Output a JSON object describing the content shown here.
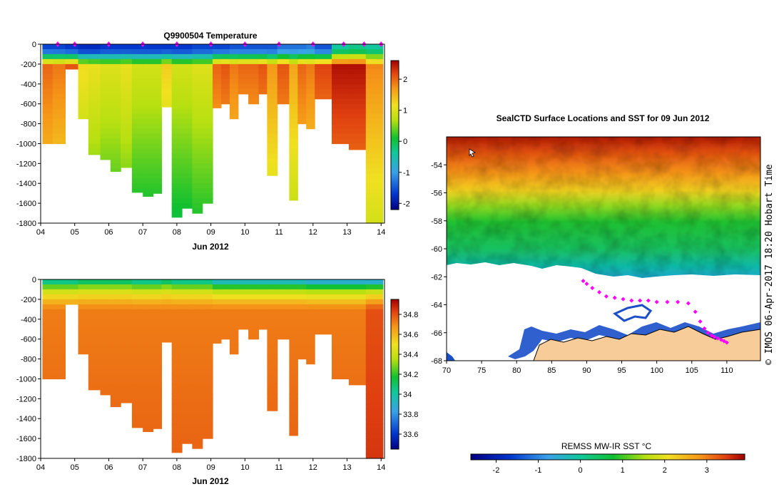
{
  "figure": {
    "credit": "© IMOS 06-Apr-2017 18:20 Hobart Time"
  },
  "colors": {
    "land": "#f8cc99",
    "track": "#ff00ff",
    "ice_edge": "#ffffff",
    "axis": "#000000"
  },
  "chart_data": [
    {
      "id": "temperature-section",
      "type": "heatmap",
      "title": "Q9900504  Temperature",
      "xlabel": "Jun 2012",
      "ylabel": "",
      "x_ticks": [
        "04",
        "05",
        "06",
        "07",
        "08",
        "09",
        "10",
        "11",
        "12",
        "13",
        "14"
      ],
      "x_tick_values": [
        4,
        5,
        6,
        7,
        8,
        9,
        10,
        11,
        12,
        13,
        14
      ],
      "xlim": [
        4,
        14.1
      ],
      "y_ticks": [
        "0",
        "-200",
        "-400",
        "-600",
        "-800",
        "-1000",
        "-1200",
        "-1400",
        "-1600",
        "-1800"
      ],
      "y_tick_values": [
        0,
        -200,
        -400,
        -600,
        -800,
        -1000,
        -1200,
        -1400,
        -1600,
        -1800
      ],
      "ylim": [
        -1800,
        0
      ],
      "colorbar": {
        "ticks": [
          "2",
          "1",
          "0",
          "-1",
          "-2"
        ],
        "tick_values": [
          2,
          1,
          0,
          -1,
          -2
        ],
        "range": [
          -2.2,
          2.6
        ]
      },
      "surfacing_markers_day": [
        4.5,
        5.0,
        6.0,
        7.0,
        8.0,
        9.0,
        10.0,
        11.0,
        12.0,
        12.9,
        13.5,
        14.0
      ],
      "profiles": {
        "start_day": [
          4.05,
          4.35,
          4.72,
          5.1,
          5.4,
          5.75,
          6.05,
          6.35,
          6.68,
          7.0,
          7.3,
          7.55,
          7.85,
          8.15,
          8.45,
          8.75,
          9.05,
          9.3,
          9.55,
          9.8,
          10.1,
          10.4,
          10.65,
          10.95,
          11.3,
          11.55,
          11.8,
          12.05,
          12.55,
          13.05,
          13.55
        ],
        "end_day": [
          4.35,
          4.72,
          5.1,
          5.4,
          5.75,
          6.05,
          6.35,
          6.68,
          7.0,
          7.3,
          7.55,
          7.85,
          8.15,
          8.45,
          8.75,
          9.05,
          9.3,
          9.55,
          9.8,
          10.1,
          10.4,
          10.65,
          10.95,
          11.3,
          11.55,
          11.8,
          12.05,
          12.55,
          13.05,
          13.55,
          14.05
        ],
        "max_depth_m": [
          1000,
          1000,
          250,
          750,
          1110,
          1160,
          1280,
          1240,
          1490,
          1530,
          1500,
          630,
          1740,
          1650,
          1700,
          1600,
          640,
          600,
          750,
          500,
          600,
          500,
          1320,
          600,
          1570,
          800,
          850,
          550,
          1000,
          1060,
          1820
        ],
        "surface_temp_c": [
          -1.6,
          -1.6,
          -1.7,
          -1.8,
          -1.8,
          -1.7,
          -1.7,
          -1.7,
          -1.7,
          -1.7,
          -1.7,
          -1.7,
          -1.7,
          -1.7,
          -1.6,
          -1.6,
          -1.6,
          -1.6,
          -1.5,
          -1.5,
          -1.5,
          -1.5,
          -1.5,
          -1.3,
          -1.3,
          -1.3,
          -1.2,
          -1.5,
          -0.4,
          -0.3,
          -0.4
        ],
        "deep_temp_c": [
          1.4,
          1.3,
          1.5,
          0.6,
          0.5,
          0.4,
          0.4,
          0.5,
          0.3,
          0.3,
          0.3,
          0.7,
          0.3,
          0.3,
          0.4,
          0.4,
          1.4,
          1.5,
          1.3,
          1.4,
          1.4,
          1.5,
          1.1,
          1.5,
          1.0,
          1.4,
          1.3,
          1.6,
          1.9,
          1.9,
          1.2
        ]
      }
    },
    {
      "id": "salinity-section",
      "type": "heatmap",
      "title": "",
      "xlabel": "Jun 2012",
      "ylabel": "",
      "x_ticks": [
        "04",
        "05",
        "06",
        "07",
        "08",
        "09",
        "10",
        "11",
        "12",
        "13",
        "14"
      ],
      "x_tick_values": [
        4,
        5,
        6,
        7,
        8,
        9,
        10,
        11,
        12,
        13,
        14
      ],
      "xlim": [
        4,
        14.1
      ],
      "y_ticks": [
        "0",
        "-200",
        "-400",
        "-600",
        "-800",
        "-1000",
        "-1200",
        "-1400",
        "-1600",
        "-1800"
      ],
      "y_tick_values": [
        0,
        -200,
        -400,
        -600,
        -800,
        -1000,
        -1200,
        -1400,
        -1600,
        -1800
      ],
      "ylim": [
        -1800,
        0
      ],
      "colorbar": {
        "ticks": [
          "34.8",
          "34.6",
          "34.4",
          "34.2",
          "34",
          "33.8",
          "33.6"
        ],
        "tick_values": [
          34.8,
          34.6,
          34.4,
          34.2,
          34.0,
          33.8,
          33.6
        ],
        "range": [
          33.45,
          34.95
        ]
      },
      "profiles": {
        "surface_salinity": [
          34.05,
          34.05,
          34.05,
          34.1,
          34.1,
          34.1,
          34.1,
          34.1,
          34.05,
          34.05,
          34.05,
          34.1,
          34.05,
          34.05,
          34.05,
          34.05,
          33.95,
          33.95,
          33.95,
          33.95,
          33.95,
          33.95,
          33.95,
          33.95,
          33.95,
          33.95,
          33.9,
          33.9,
          33.9,
          33.9,
          33.9
        ],
        "deep_salinity": [
          34.72,
          34.72,
          34.72,
          34.72,
          34.72,
          34.72,
          34.72,
          34.72,
          34.72,
          34.72,
          34.72,
          34.72,
          34.72,
          34.72,
          34.72,
          34.72,
          34.72,
          34.72,
          34.72,
          34.72,
          34.72,
          34.72,
          34.72,
          34.72,
          34.72,
          34.72,
          34.72,
          34.72,
          34.72,
          34.72,
          34.8
        ]
      }
    },
    {
      "id": "sst-map",
      "type": "heatmap",
      "title": "SealCTD Surface Locations and SST for 09 Jun 2012",
      "xlabel": "",
      "ylabel": "",
      "x_ticks": [
        "70",
        "75",
        "80",
        "85",
        "90",
        "95",
        "100",
        "105",
        "110"
      ],
      "x_tick_values": [
        70,
        75,
        80,
        85,
        90,
        95,
        100,
        105,
        110
      ],
      "xlim": [
        70,
        114.8
      ],
      "y_ticks": [
        "-54",
        "-56",
        "-58",
        "-60",
        "-62",
        "-64",
        "-66",
        "-68"
      ],
      "y_tick_values": [
        -54,
        -56,
        -58,
        -60,
        -62,
        -64,
        -66,
        -68
      ],
      "ylim": [
        -68,
        -52
      ],
      "colorbar": {
        "label": "REMSS MW-IR SST °C",
        "ticks": [
          "-2",
          "-1",
          "0",
          "1",
          "2",
          "3"
        ],
        "tick_values": [
          -2,
          -1,
          0,
          1,
          2,
          3
        ],
        "range": [
          -2.6,
          3.9
        ]
      },
      "sst_by_lat": {
        "lat": [
          -52.5,
          -54,
          -56,
          -58,
          -60,
          -61.5
        ],
        "sst_c": [
          3.3,
          2.3,
          1.1,
          0.1,
          -0.9,
          -1.4
        ]
      },
      "ice_edge_lat": -61.4,
      "track": {
        "lon": [
          89.5,
          90.0,
          90.8,
          91.8,
          92.8,
          94.0,
          95.2,
          96.4,
          97.6,
          98.8,
          100.0,
          101.5,
          103.0,
          104.5,
          105.5,
          106.2,
          106.8,
          107.3,
          107.8,
          108.2,
          108.7,
          109.2,
          109.6,
          110.0
        ],
        "lat": [
          -62.3,
          -62.5,
          -62.8,
          -63.1,
          -63.4,
          -63.5,
          -63.6,
          -63.7,
          -63.7,
          -63.7,
          -63.8,
          -63.8,
          -63.8,
          -63.9,
          -64.5,
          -65.2,
          -65.7,
          -66.0,
          -66.2,
          -66.3,
          -66.4,
          -66.5,
          -66.6,
          -66.7
        ]
      }
    }
  ]
}
